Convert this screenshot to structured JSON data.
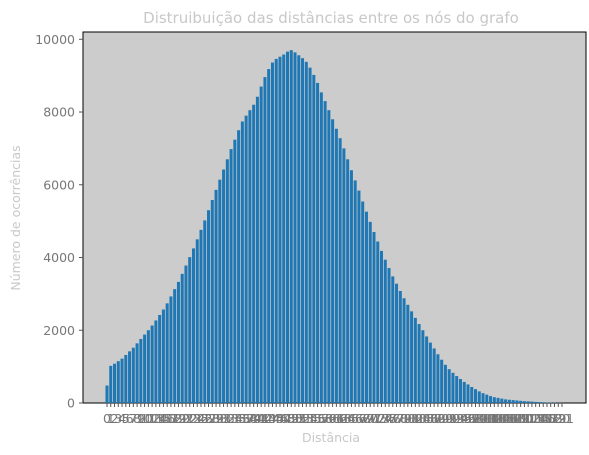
{
  "chart_data": {
    "type": "bar",
    "title": "Distruibuição das distâncias entre os nós do grafo",
    "xlabel": "Distância",
    "ylabel": "Número de ocorrências",
    "x": [
      0,
      1,
      2,
      3,
      4,
      5,
      6,
      7,
      8,
      9,
      10,
      11,
      12,
      13,
      14,
      15,
      16,
      17,
      18,
      19,
      20,
      21,
      22,
      23,
      24,
      25,
      26,
      27,
      28,
      29,
      30,
      31,
      32,
      33,
      34,
      35,
      36,
      37,
      38,
      39,
      40,
      41,
      42,
      43,
      44,
      45,
      46,
      47,
      48,
      49,
      50,
      51,
      52,
      53,
      54,
      55,
      56,
      57,
      58,
      59,
      60,
      61,
      62,
      63,
      64,
      65,
      66,
      67,
      68,
      69,
      70,
      71,
      72,
      73,
      74,
      75,
      76,
      77,
      78,
      79,
      80,
      81,
      82,
      83,
      84,
      85,
      86,
      87,
      88,
      89,
      90,
      91,
      92,
      93,
      94,
      95,
      96,
      97,
      98,
      99,
      100,
      101,
      102,
      103,
      104,
      105,
      106,
      107,
      108,
      109,
      110,
      111,
      112,
      113,
      114,
      115,
      116,
      117,
      118,
      119,
      120,
      121
    ],
    "values": [
      480,
      1020,
      1080,
      1150,
      1220,
      1320,
      1420,
      1520,
      1640,
      1760,
      1880,
      2000,
      2130,
      2270,
      2420,
      2570,
      2740,
      2930,
      3130,
      3330,
      3550,
      3780,
      4010,
      4250,
      4500,
      4760,
      5020,
      5300,
      5580,
      5860,
      6140,
      6420,
      6700,
      6980,
      7240,
      7500,
      7740,
      7900,
      8050,
      8200,
      8420,
      8700,
      8960,
      9180,
      9360,
      9460,
      9520,
      9580,
      9660,
      9700,
      9640,
      9560,
      9480,
      9380,
      9220,
      9020,
      8800,
      8540,
      8300,
      8050,
      7800,
      7540,
      7280,
      7000,
      6700,
      6400,
      6120,
      5840,
      5540,
      5260,
      4980,
      4700,
      4440,
      4180,
      3940,
      3710,
      3480,
      3280,
      3080,
      2880,
      2700,
      2520,
      2340,
      2170,
      2000,
      1830,
      1660,
      1500,
      1340,
      1190,
      1050,
      930,
      830,
      740,
      660,
      580,
      510,
      440,
      380,
      320,
      270,
      230,
      190,
      160,
      140,
      120,
      100,
      90,
      80,
      70,
      60,
      50,
      45,
      40,
      30,
      25,
      20,
      15,
      10,
      8,
      5,
      3
    ],
    "xticks": [
      0,
      1,
      2,
      3,
      4,
      5,
      6,
      7,
      8,
      9,
      10,
      11,
      12,
      13,
      14,
      15,
      16,
      17,
      18,
      19,
      20,
      21,
      22,
      23,
      24,
      25,
      26,
      27,
      28,
      29,
      30,
      31,
      32,
      33,
      34,
      35,
      36,
      37,
      38,
      39,
      40,
      41,
      42,
      43,
      44,
      45,
      46,
      47,
      48,
      49,
      50,
      51,
      52,
      53,
      54,
      55,
      56,
      57,
      58,
      59,
      60,
      61,
      62,
      63,
      64,
      65,
      66,
      67,
      68,
      69,
      70,
      71,
      72,
      73,
      74,
      75,
      76,
      77,
      78,
      79,
      80,
      81,
      82,
      83,
      84,
      85,
      86,
      87,
      88,
      89,
      90,
      91,
      92,
      93,
      94,
      95,
      96,
      97,
      98,
      99,
      100,
      101,
      102,
      103,
      104,
      105,
      106,
      107,
      108,
      109,
      110,
      111,
      112,
      113,
      114,
      115,
      116,
      117,
      118,
      119,
      120,
      121
    ],
    "yticks": [
      0,
      2000,
      4000,
      6000,
      8000,
      10000
    ],
    "ylim": [
      0,
      10200
    ],
    "grid": false,
    "colors": {
      "bar": "#1f77b4",
      "plot_background": "#cccccc"
    }
  }
}
